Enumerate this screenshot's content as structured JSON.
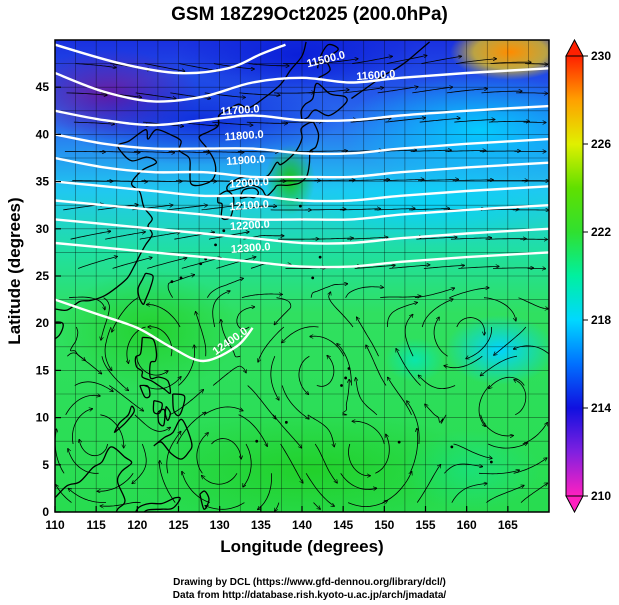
{
  "title": "GSM 18Z29Oct2025 (200.0hPa)",
  "xlabel": "Longitude (degrees)",
  "ylabel": "Latitude  (degrees)",
  "credits": [
    "Drawing by DCL (https://www.gfd-dennou.org/library/dcl/)",
    "Data from http://database.rish.kyoto-u.ac.jp/arch/jmadata/"
  ],
  "chart_data": {
    "type": "heatmap",
    "xlim": [
      110,
      170
    ],
    "ylim": [
      0,
      50
    ],
    "x_ticks": [
      110,
      115,
      120,
      125,
      130,
      135,
      140,
      145,
      150,
      155,
      160,
      165
    ],
    "y_ticks": [
      0,
      5,
      10,
      15,
      20,
      25,
      30,
      35,
      40,
      45
    ],
    "colorbar": {
      "min": 210,
      "max": 230,
      "ticks": [
        210,
        214,
        218,
        222,
        226,
        230
      ],
      "colors": [
        "#e010c0",
        "#1010e0",
        "#00b8ff",
        "#40e040",
        "#20c000",
        "#ffe000",
        "#ff2000"
      ]
    },
    "contour_labels": [
      "11500.0",
      "11600.0",
      "11700.0",
      "11800.0",
      "11900.0",
      "12000.0",
      "12100.0",
      "12200.0",
      "12300.0",
      "12400.0"
    ],
    "contours": [
      {
        "level": 11500,
        "points": [
          [
            110,
            49.5
          ],
          [
            118,
            47.5
          ],
          [
            125,
            46.5
          ],
          [
            131,
            47
          ],
          [
            135,
            48.5
          ],
          [
            138,
            49.5
          ]
        ]
      },
      {
        "level": 11600,
        "points": [
          [
            110,
            46.5
          ],
          [
            116,
            44.5
          ],
          [
            122,
            43.5
          ],
          [
            128,
            44
          ],
          [
            134,
            45.5
          ],
          [
            140,
            46
          ],
          [
            146,
            45.5
          ],
          [
            152,
            46
          ],
          [
            160,
            46.5
          ],
          [
            170,
            47
          ]
        ]
      },
      {
        "level": 11700,
        "points": [
          [
            110,
            42.5
          ],
          [
            116,
            41.5
          ],
          [
            122,
            41
          ],
          [
            128,
            41.5
          ],
          [
            134,
            42
          ],
          [
            140,
            41.5
          ],
          [
            146,
            41.5
          ],
          [
            152,
            42
          ],
          [
            160,
            42.5
          ],
          [
            170,
            43
          ]
        ]
      },
      {
        "level": 11800,
        "points": [
          [
            110,
            40
          ],
          [
            116,
            39
          ],
          [
            122,
            38.5
          ],
          [
            128,
            38.5
          ],
          [
            134,
            38.5
          ],
          [
            140,
            38
          ],
          [
            146,
            38
          ],
          [
            152,
            38.5
          ],
          [
            160,
            39
          ],
          [
            170,
            39.5
          ]
        ]
      },
      {
        "level": 11900,
        "points": [
          [
            110,
            37.5
          ],
          [
            116,
            36.5
          ],
          [
            122,
            36
          ],
          [
            128,
            36
          ],
          [
            134,
            35.5
          ],
          [
            140,
            35.5
          ],
          [
            146,
            35.5
          ],
          [
            152,
            36
          ],
          [
            160,
            36.5
          ],
          [
            170,
            37
          ]
        ]
      },
      {
        "level": 12000,
        "points": [
          [
            110,
            35
          ],
          [
            116,
            34.5
          ],
          [
            122,
            34
          ],
          [
            128,
            33.5
          ],
          [
            134,
            33.5
          ],
          [
            140,
            33
          ],
          [
            146,
            33
          ],
          [
            152,
            33.5
          ],
          [
            160,
            34
          ],
          [
            170,
            34.5
          ]
        ]
      },
      {
        "level": 12100,
        "points": [
          [
            110,
            33
          ],
          [
            116,
            32.5
          ],
          [
            122,
            32
          ],
          [
            128,
            31.5
          ],
          [
            134,
            31
          ],
          [
            140,
            31
          ],
          [
            146,
            31
          ],
          [
            152,
            31.5
          ],
          [
            160,
            32
          ],
          [
            170,
            32.5
          ]
        ]
      },
      {
        "level": 12200,
        "points": [
          [
            110,
            31
          ],
          [
            116,
            30.5
          ],
          [
            122,
            30
          ],
          [
            128,
            29.5
          ],
          [
            134,
            29
          ],
          [
            140,
            28.5
          ],
          [
            146,
            28.5
          ],
          [
            152,
            29
          ],
          [
            160,
            29.5
          ],
          [
            170,
            30
          ]
        ]
      },
      {
        "level": 12300,
        "points": [
          [
            110,
            28.5
          ],
          [
            116,
            28
          ],
          [
            122,
            27.5
          ],
          [
            128,
            27
          ],
          [
            134,
            26.5
          ],
          [
            140,
            26
          ],
          [
            146,
            26
          ],
          [
            152,
            26.5
          ],
          [
            160,
            27
          ],
          [
            170,
            27.5
          ]
        ]
      },
      {
        "level": 12400,
        "points": [
          [
            110,
            22.5
          ],
          [
            115,
            21
          ],
          [
            120,
            19.5
          ],
          [
            124,
            17.5
          ],
          [
            128,
            16
          ],
          [
            132,
            17.5
          ],
          [
            134,
            19.5
          ]
        ]
      }
    ]
  },
  "map_features": {
    "coastline_color": "#000000",
    "contour_color": "#ffffff",
    "streamline_color": "#000000"
  }
}
